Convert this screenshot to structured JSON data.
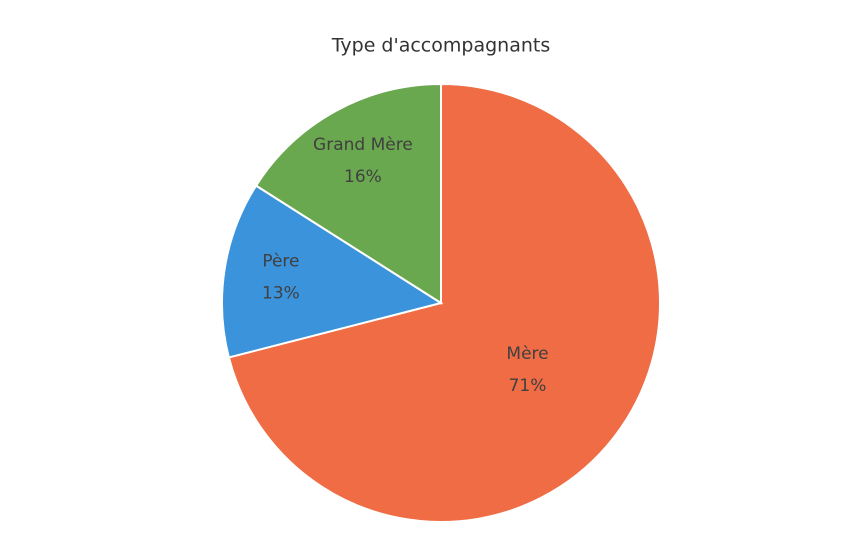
{
  "chart_data": {
    "type": "pie",
    "title": "Type d'accompagnants",
    "categories": [
      "Mère",
      "Père",
      "Grand Mère"
    ],
    "values": [
      71,
      13,
      16
    ],
    "value_labels": [
      "71%",
      "13%",
      "16%"
    ],
    "colors": [
      "#ef6c44",
      "#3b93dc",
      "#6aa84f"
    ]
  }
}
